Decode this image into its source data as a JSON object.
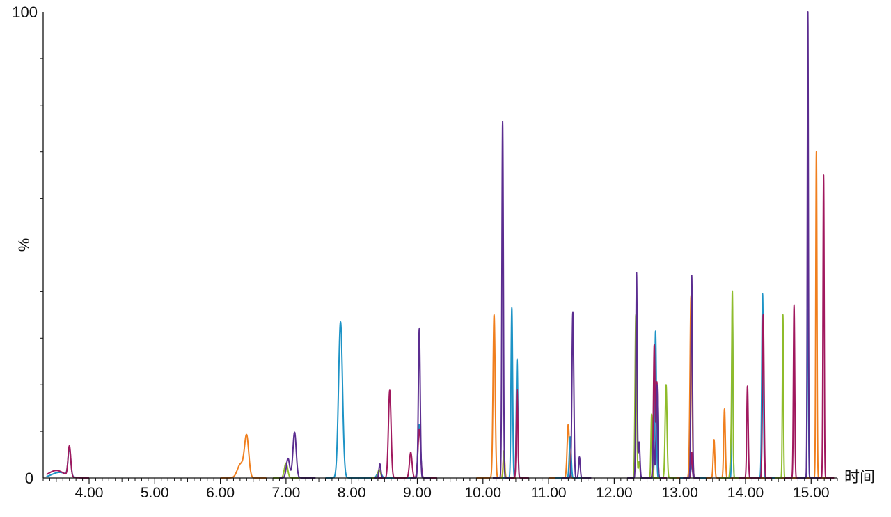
{
  "chart_data": {
    "type": "line",
    "title": "",
    "xlabel": "时间",
    "ylabel": "%",
    "xlim": [
      3.3,
      15.4
    ],
    "ylim": [
      0,
      100
    ],
    "x_ticks": [
      "4.00",
      "5.00",
      "6.00",
      "7.00",
      "8.00",
      "9.00",
      "10.00",
      "11.00",
      "12.00",
      "13.00",
      "14.00",
      "15.00"
    ],
    "y_ticks": [
      "0",
      "%",
      "100"
    ],
    "grid": false,
    "legend": "none",
    "series": [
      {
        "color": "#F07F1E",
        "segments": [
          [
            6.0,
            6.7
          ],
          [
            9.9,
            10.5
          ],
          [
            11.0,
            11.5
          ],
          [
            12.9,
            15.35
          ]
        ],
        "peaks": [
          [
            6.31,
            3,
            0.05
          ],
          [
            6.4,
            8.7,
            0.032
          ],
          [
            8.25,
            6.2,
            0.022
          ],
          [
            8.6,
            20.5,
            0.022
          ],
          [
            10.17,
            35,
            0.016
          ],
          [
            10.32,
            5.8,
            0.012
          ],
          [
            11.3,
            11.5,
            0.017
          ],
          [
            13.17,
            39,
            0.015
          ],
          [
            13.52,
            8.2,
            0.012
          ],
          [
            13.68,
            14.8,
            0.012
          ],
          [
            15.08,
            70,
            0.009
          ]
        ]
      },
      {
        "color": "#1D93C6",
        "segments": [
          [
            3.35,
            3.9
          ],
          [
            7.6,
            9.3
          ],
          [
            10.3,
            10.7
          ],
          [
            11.1,
            11.5
          ],
          [
            12.4,
            12.8
          ],
          [
            13.0,
            13.4
          ],
          [
            13.6,
            13.95
          ],
          [
            14.1,
            14.45
          ],
          [
            14.8,
            15.1
          ]
        ],
        "peaks": [
          [
            3.7,
            6.0,
            0.02
          ],
          [
            3.55,
            1.2,
            0.12
          ],
          [
            7.83,
            33.5,
            0.03
          ],
          [
            8.42,
            1.5,
            0.03
          ],
          [
            9.03,
            11.5,
            0.02
          ],
          [
            10.44,
            36.5,
            0.012
          ],
          [
            10.52,
            25.5,
            0.012
          ],
          [
            11.33,
            8.8,
            0.014
          ],
          [
            12.63,
            31.5,
            0.012
          ],
          [
            13.18,
            3,
            0.012
          ],
          [
            13.8,
            37,
            0.009
          ],
          [
            14.26,
            39.5,
            0.012
          ],
          [
            14.95,
            57,
            0.008
          ]
        ]
      },
      {
        "color": "#8FBC2B",
        "segments": [
          [
            6.8,
            7.2
          ],
          [
            8.3,
            8.5
          ],
          [
            10.2,
            10.4
          ],
          [
            12.2,
            12.95
          ],
          [
            13.6,
            13.95
          ],
          [
            14.45,
            14.65
          ]
        ],
        "peaks": [
          [
            7.0,
            3.2,
            0.025
          ],
          [
            8.42,
            1.8,
            0.02
          ],
          [
            10.32,
            5.8,
            0.01
          ],
          [
            12.33,
            35,
            0.012
          ],
          [
            12.38,
            3.5,
            0.012
          ],
          [
            12.57,
            13.7,
            0.01
          ],
          [
            12.79,
            20,
            0.014
          ],
          [
            13.8,
            38.5,
            0.009
          ],
          [
            13.78,
            6.5,
            0.012
          ],
          [
            14.57,
            35,
            0.008
          ]
        ]
      },
      {
        "color": "#A0185E",
        "segments": [
          [
            3.35,
            4.0
          ],
          [
            8.4,
            9.3
          ],
          [
            10.4,
            10.7
          ],
          [
            12.5,
            12.8
          ],
          [
            13.05,
            13.3
          ],
          [
            13.9,
            14.4
          ],
          [
            14.6,
            14.85
          ],
          [
            15.0,
            15.35
          ]
        ],
        "peaks": [
          [
            3.7,
            6.5,
            0.02
          ],
          [
            3.5,
            1.6,
            0.12
          ],
          [
            8.58,
            18.8,
            0.02
          ],
          [
            8.9,
            5.5,
            0.02
          ],
          [
            9.03,
            10.5,
            0.02
          ],
          [
            10.52,
            19,
            0.012
          ],
          [
            12.61,
            28.5,
            0.012
          ],
          [
            12.65,
            20.5,
            0.012
          ],
          [
            13.18,
            5.5,
            0.01
          ],
          [
            14.03,
            19.7,
            0.011
          ],
          [
            14.27,
            35,
            0.012
          ],
          [
            14.74,
            37,
            0.01
          ],
          [
            15.19,
            65,
            0.009
          ]
        ]
      },
      {
        "color": "#5B2D90",
        "segments": [
          [
            6.9,
            7.45
          ],
          [
            8.35,
            8.5
          ],
          [
            8.9,
            9.2
          ],
          [
            10.15,
            10.4
          ],
          [
            11.2,
            11.65
          ],
          [
            12.2,
            12.75
          ],
          [
            13.05,
            13.3
          ],
          [
            14.8,
            15.1
          ]
        ],
        "peaks": [
          [
            7.03,
            4.2,
            0.025
          ],
          [
            7.13,
            9.8,
            0.025
          ],
          [
            8.43,
            3,
            0.014
          ],
          [
            9.03,
            32,
            0.014
          ],
          [
            10.3,
            76.5,
            0.011
          ],
          [
            11.37,
            35.5,
            0.014
          ],
          [
            11.47,
            4.5,
            0.012
          ],
          [
            12.34,
            44,
            0.01
          ],
          [
            12.38,
            7.7,
            0.012
          ],
          [
            12.6,
            8,
            0.012
          ],
          [
            12.65,
            20,
            0.012
          ],
          [
            13.18,
            43.5,
            0.011
          ],
          [
            14.95,
            100,
            0.008
          ]
        ]
      }
    ]
  }
}
